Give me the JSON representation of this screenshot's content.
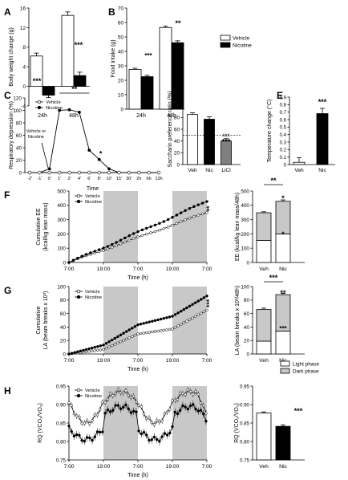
{
  "chart_data": [
    {
      "id": "A",
      "type": "bar",
      "panel_label": "A",
      "ylabel": "Body weight change (g)",
      "ylim": [
        -4,
        16
      ],
      "yticks": [
        -4,
        0,
        4,
        8,
        12,
        16
      ],
      "categories": [
        "24h",
        "48h"
      ],
      "series": [
        {
          "name": "Vehicle",
          "values": [
            6.2,
            14.5
          ],
          "err": [
            0.6,
            0.7
          ],
          "color": "#ffffff"
        },
        {
          "name": "Nicotine",
          "values": [
            -1.8,
            2.2
          ],
          "err": [
            0.5,
            0.7
          ],
          "color": "#000000"
        }
      ],
      "annotations": [
        "***",
        "***"
      ]
    },
    {
      "id": "B",
      "type": "bar",
      "panel_label": "B",
      "ylabel": "Food intake (g)",
      "ylim": [
        0,
        70
      ],
      "yticks": [
        0,
        10,
        20,
        30,
        40,
        50,
        60,
        70
      ],
      "categories": [
        "24h",
        "48h"
      ],
      "series": [
        {
          "name": "Vehicle",
          "values": [
            27.5,
            56.5
          ],
          "err": [
            0.8,
            1.0
          ],
          "color": "#ffffff"
        },
        {
          "name": "Nicotine",
          "values": [
            22.5,
            46.0
          ],
          "err": [
            0.9,
            1.3
          ],
          "color": "#000000"
        }
      ],
      "annotations": [
        "***",
        "**"
      ],
      "legend": [
        "Vehicle",
        "Nicotine"
      ]
    },
    {
      "id": "C",
      "type": "line",
      "panel_label": "C",
      "ylabel": "Respiratory depression (%)",
      "xlabel": "Time",
      "ylim": [
        0,
        120
      ],
      "yticks": [
        0,
        20,
        40,
        60,
        80,
        100,
        120
      ],
      "x": [
        "-2'",
        "-1'",
        "0'",
        "1'",
        "2'",
        "4'",
        "6'",
        "8'",
        "10'",
        "15'",
        "30'",
        "2h",
        "6h",
        "12h"
      ],
      "series": [
        {
          "name": "Vehicle",
          "values": [
            0,
            0,
            0,
            0,
            0,
            0,
            0,
            0,
            0,
            0,
            0,
            0,
            0,
            0
          ]
        },
        {
          "name": "Nicotine",
          "values": [
            0,
            0,
            6,
            100,
            101,
            97,
            36,
            21,
            6,
            0,
            0,
            0,
            0,
            0
          ]
        }
      ],
      "annotation_text": "Vehicle or\nNicotine",
      "annotations": [
        "**",
        "*"
      ],
      "legend": [
        "Vehicle",
        "Nicotine"
      ]
    },
    {
      "id": "D",
      "type": "bar",
      "panel_label": "D",
      "ylabel": "Saccharin preference ratio (%)",
      "ylim": [
        0,
        120
      ],
      "yticks": [
        0,
        20,
        40,
        60,
        80,
        100,
        120
      ],
      "categories": [
        "Veh",
        "Nic",
        "LiCl"
      ],
      "values": [
        85,
        77,
        40
      ],
      "err": [
        3,
        4,
        4
      ],
      "colors": [
        "#ffffff",
        "#000000",
        "#808080"
      ],
      "reference_line": 50,
      "annotations": [
        "###",
        "***"
      ]
    },
    {
      "id": "E",
      "type": "bar",
      "panel_label": "E",
      "ylabel": "Temperature change (°C)",
      "ylim": [
        0,
        0.9
      ],
      "yticks": [
        0,
        0.1,
        0.2,
        0.3,
        0.4,
        0.5,
        0.6,
        0.7,
        0.8,
        0.9
      ],
      "categories": [
        "Veh",
        "Nic"
      ],
      "values": [
        0.03,
        0.68
      ],
      "err": [
        0.06,
        0.07
      ],
      "colors": [
        "#ffffff",
        "#000000"
      ],
      "annotations": [
        "***"
      ]
    },
    {
      "id": "F",
      "type": "line",
      "panel_label": "F",
      "ylabel": "Cumulative EE\n(kcal/kg lean mass)",
      "xlabel": "Time (h)",
      "ylim": [
        0,
        500
      ],
      "yticks": [
        0,
        100,
        200,
        300,
        400,
        500
      ],
      "xticks": [
        "7:00",
        "19:00",
        "7:00",
        "19:00",
        "7:00"
      ],
      "x_range_h": [
        0,
        48
      ],
      "dark_phases_h": [
        [
          12,
          24
        ],
        [
          36,
          48
        ]
      ],
      "series": [
        {
          "name": "Vehicle",
          "end_value": 350,
          "style": "open"
        },
        {
          "name": "Nicotine",
          "end_value": 428,
          "style": "filled"
        }
      ],
      "annotations": [
        "**"
      ],
      "legend": [
        "Vehicle",
        "Nicotine"
      ]
    },
    {
      "id": "F2",
      "type": "bar",
      "ylabel": "EE (kcal/kg lean mass/48h)",
      "ylim": [
        0,
        500
      ],
      "yticks": [
        0,
        100,
        200,
        300,
        400,
        500
      ],
      "categories": [
        "Veh",
        "Nic"
      ],
      "series": [
        {
          "name": "Light phase",
          "values": [
            155,
            200
          ],
          "color": "#ffffff"
        },
        {
          "name": "Dark phase",
          "values": [
            193,
            228
          ],
          "color": "#c8c8c8"
        }
      ],
      "annotations": [
        "**",
        "*",
        "*"
      ]
    },
    {
      "id": "G",
      "type": "line",
      "panel_label": "G",
      "ylabel": "Cumulative\nLA (beam breaks x 10³)",
      "xlabel": "Time (h)",
      "ylim": [
        0,
        100
      ],
      "yticks": [
        0,
        20,
        40,
        60,
        80,
        100
      ],
      "xticks": [
        "7:00",
        "19:00",
        "7:00",
        "19:00",
        "7:00"
      ],
      "x_range_h": [
        0,
        48
      ],
      "dark_phases_h": [
        [
          12,
          24
        ],
        [
          36,
          48
        ]
      ],
      "series": [
        {
          "name": "Vehicle",
          "end_value": 65,
          "style": "open"
        },
        {
          "name": "Nicotine",
          "end_value": 86,
          "style": "filled"
        }
      ],
      "annotations": [
        "***"
      ],
      "legend": [
        "Vehicle",
        "Nicotine"
      ]
    },
    {
      "id": "G2",
      "type": "bar",
      "ylabel": "LA (beam breaks x 10³/48h)",
      "ylim": [
        0,
        100
      ],
      "yticks": [
        0,
        20,
        40,
        60,
        80,
        100
      ],
      "categories": [
        "Veh",
        "Nic"
      ],
      "series": [
        {
          "name": "Light phase",
          "values": [
            19,
            34
          ],
          "color": "#ffffff"
        },
        {
          "name": "Dark phase",
          "values": [
            47,
            54
          ],
          "color": "#c8c8c8"
        }
      ],
      "annotations": [
        "***",
        "**",
        "***"
      ]
    },
    {
      "id": "H",
      "type": "line",
      "panel_label": "H",
      "ylabel": "RQ (VCO₂/VO₂)",
      "xlabel": "Time (h)",
      "ylim": [
        0.75,
        0.95
      ],
      "yticks": [
        0.75,
        0.8,
        0.85,
        0.9,
        0.95
      ],
      "xticks": [
        "7:00",
        "19:00",
        "7:00",
        "19:00",
        "7:00"
      ],
      "x_range_h": [
        0,
        48
      ],
      "dark_phases_h": [
        [
          12,
          24
        ],
        [
          36,
          48
        ]
      ],
      "series": [
        {
          "name": "Vehicle",
          "style": "open"
        },
        {
          "name": "Nicotine",
          "style": "filled"
        }
      ],
      "legend": [
        "Vehicle",
        "Nicotine"
      ]
    },
    {
      "id": "H2",
      "type": "bar",
      "ylabel": "RQ (VCO₂/VO₂)",
      "ylim": [
        0.75,
        0.95
      ],
      "yticks": [
        0.75,
        0.8,
        0.85,
        0.9,
        0.95
      ],
      "categories": [
        "Veh",
        "Nic"
      ],
      "values": [
        0.877,
        0.841
      ],
      "err": [
        0.003,
        0.004
      ],
      "colors": [
        "#ffffff",
        "#000000"
      ],
      "annotations": [
        "***"
      ]
    }
  ],
  "phase_legend": [
    "Light phase",
    "Dark phase"
  ],
  "colors": {
    "light_phase": "#ffffff",
    "dark_phase": "#c8c8c8",
    "dark_band": "#c8c8c8",
    "lic": "#808080"
  }
}
